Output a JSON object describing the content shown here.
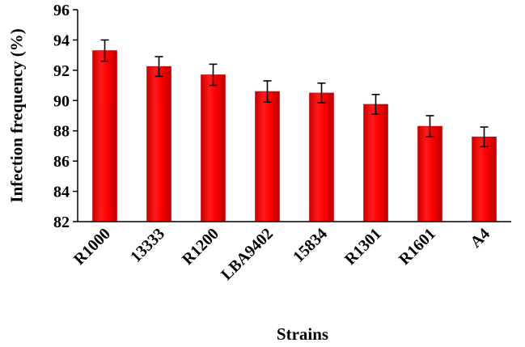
{
  "chart_data": {
    "type": "bar",
    "title": "",
    "xlabel": "Strains",
    "ylabel": "Infection frequency (%)",
    "ylim": [
      82,
      96
    ],
    "yticks": [
      82,
      84,
      86,
      88,
      90,
      92,
      94,
      96
    ],
    "grid": false,
    "legend": "none",
    "bar_color": "#ff0000",
    "bar_dark_color": "#c00000",
    "categories": [
      "R1000",
      "13333",
      "R1200",
      "LBA9402",
      "15834",
      "R1301",
      "R1601",
      "A4"
    ],
    "series": [
      {
        "values": [
          93.3,
          92.25,
          91.7,
          90.6,
          90.5,
          89.75,
          88.3,
          87.6
        ],
        "errors": [
          0.7,
          0.65,
          0.7,
          0.7,
          0.65,
          0.65,
          0.7,
          0.65
        ]
      }
    ]
  }
}
